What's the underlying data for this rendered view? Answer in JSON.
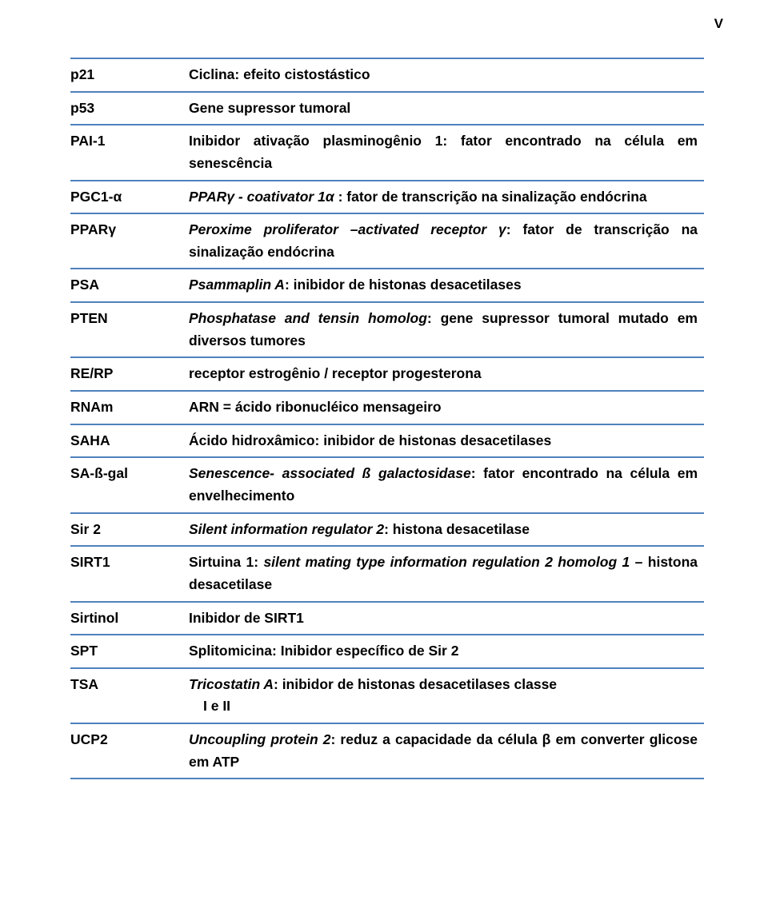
{
  "page_marker": "V",
  "border_color": "#4f81bd",
  "text_color": "#000000",
  "rows": [
    {
      "term": "p21",
      "def_plain": "Ciclina: efeito cistostástico"
    },
    {
      "term": "p53",
      "def_plain": "Gene supressor tumoral"
    },
    {
      "term": "PAI-1",
      "def_plain": "Inibidor ativação plasminogênio 1: fator encontrado na célula em senescência"
    },
    {
      "term": "PGC1-α",
      "def_italic_prefix": "PPARγ - coativator 1α",
      "def_rest": " : fator de transcrição na sinalização endócrina"
    },
    {
      "term": "PPARγ",
      "def_italic_prefix": "Peroxime proliferator –activated receptor γ",
      "def_rest": ": fator de transcrição na sinalização endócrina"
    },
    {
      "term": "PSA",
      "def_italic_prefix": "Psammaplin A",
      "def_rest": ": inibidor de histonas desacetilases"
    },
    {
      "term": "PTEN",
      "def_italic_prefix": "Phosphatase and tensin homolog",
      "def_rest": ": gene supressor tumoral  mutado em diversos tumores"
    },
    {
      "term": "RE/RP",
      "def_plain": "receptor estrogênio / receptor progesterona"
    },
    {
      "term": "RNAm",
      "def_plain": "ARN = ácido ribonucléico mensageiro"
    },
    {
      "term": "SAHA",
      "def_plain": "Ácido hidroxâmico: inibidor de histonas desacetilases"
    },
    {
      "term": "SA-ß-gal",
      "def_italic_prefix": "Senescence- associated ß galactosidase",
      "def_rest": ": fator encontrado na célula em envelhecimento"
    },
    {
      "term": "Sir 2",
      "def_italic_prefix": "Silent information regulator 2",
      "def_rest": ": histona desacetilase"
    },
    {
      "term": "SIRT1",
      "def_pre": "Sirtuina 1: ",
      "def_italic_mid": "silent mating type information regulation 2 homolog 1 ",
      "def_post": "– histona desacetilase"
    },
    {
      "term": "Sirtinol",
      "def_plain": "Inibidor de SIRT1"
    },
    {
      "term": "SPT",
      "def_plain": "Splitomicina: Inibidor específico de Sir 2"
    },
    {
      "term": "TSA",
      "def_italic_prefix": "Tricostatin A",
      "def_rest": ": inibidor de histonas desacetilases classe",
      "def_line2": "I e II"
    },
    {
      "term": "UCP2",
      "def_italic_prefix": "Uncoupling protein 2",
      "def_rest": ": reduz a capacidade da célula β em converter glicose em ATP"
    }
  ]
}
